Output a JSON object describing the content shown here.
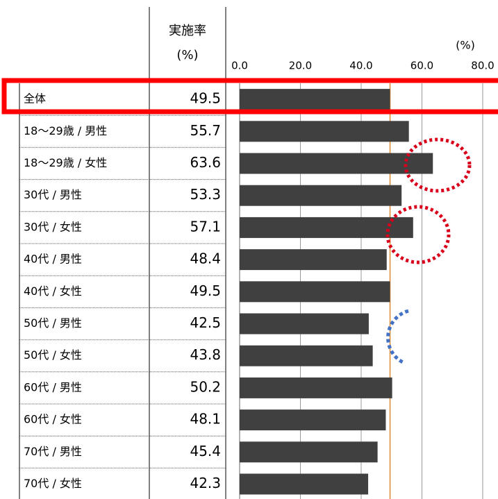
{
  "chart_data": {
    "type": "bar",
    "column_header": "実施率",
    "column_unit": "(%)",
    "axis_unit": "(%)",
    "categories": [
      "全体",
      "18～29歳 / 男性",
      "18～29歳 / 女性",
      "30代 / 男性",
      "30代 / 女性",
      "40代 / 男性",
      "40代 / 女性",
      "50代 / 男性",
      "50代 / 女性",
      "60代 / 男性",
      "60代 / 女性",
      "70代 / 男性",
      "70代 / 女性"
    ],
    "values": [
      49.5,
      55.7,
      63.6,
      53.3,
      57.1,
      48.4,
      49.5,
      42.5,
      43.8,
      50.2,
      48.1,
      45.4,
      42.3
    ],
    "color": "#404040",
    "xlim": [
      0,
      80
    ],
    "xticks": [
      {
        "value": 0,
        "label": "0.0"
      },
      {
        "value": 20,
        "label": "20.0"
      },
      {
        "value": 40,
        "label": "40.0"
      },
      {
        "value": 60,
        "label": "60.0"
      },
      {
        "value": 80,
        "label": "80.0"
      }
    ],
    "grid": true
  }
}
